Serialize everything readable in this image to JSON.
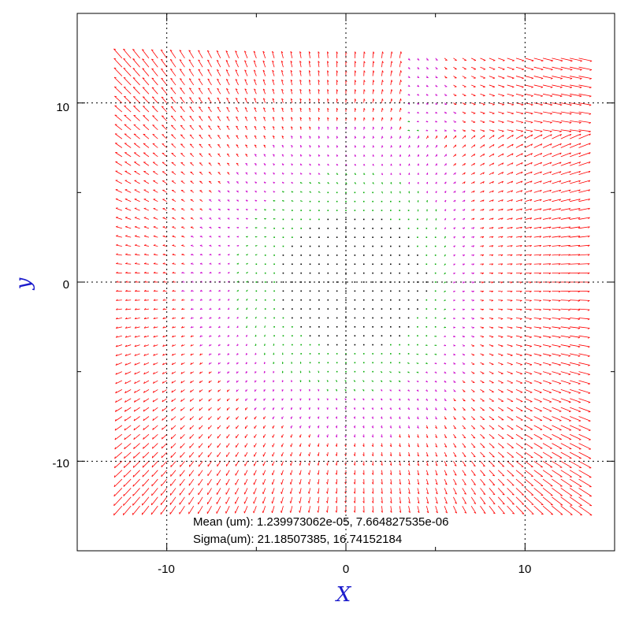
{
  "chart_data": {
    "type": "quiver",
    "xlabel": "X",
    "ylabel": "y",
    "xlim": [
      -15,
      15
    ],
    "ylim": [
      -15,
      15
    ],
    "x_ticks": [
      "-10",
      "0",
      "10"
    ],
    "y_ticks": [
      "10",
      "0",
      "-10"
    ],
    "x_tick_values": [
      -10,
      0,
      10
    ],
    "y_tick_values": [
      10,
      0,
      -10
    ],
    "grid": true,
    "grid_lines_at": [
      -10,
      0,
      10
    ],
    "field": {
      "x_range": [
        -12.5,
        13.25
      ],
      "y_range": [
        -12.5,
        12.5
      ],
      "spacing": 0.5,
      "description_colors": {
        "large_displacement": "#ff0000",
        "medium_displacement": "#cc00cc",
        "small_displacement": "#00aa00",
        "tiny_displacement": "#000000"
      }
    },
    "annotations": {
      "mean": "Mean (um): 1.239973062e-05, 7.664827535e-06",
      "sigma": "Sigma(um): 21.18507385, 16.74152184"
    }
  },
  "colors": {
    "axis": "#000000",
    "grid": "#000000",
    "axis_title": "#1a1acc",
    "vector_large": "#ff0000",
    "vector_medium": "#cc00cc",
    "vector_small": "#00aa00"
  }
}
